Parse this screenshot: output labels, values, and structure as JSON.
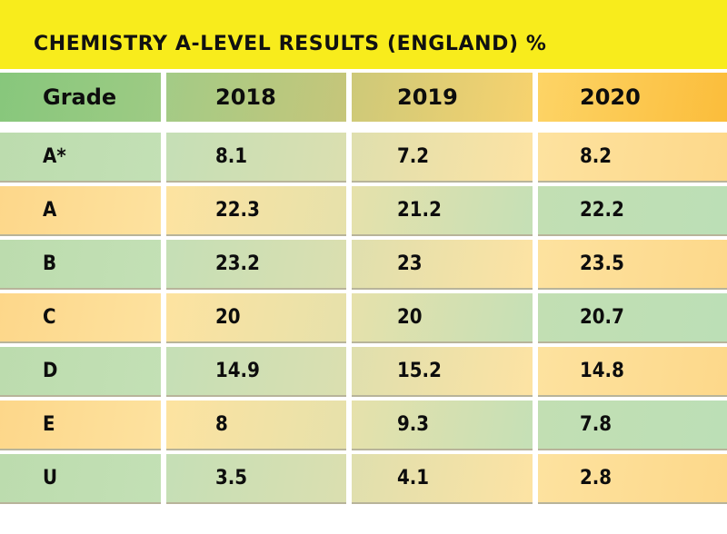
{
  "chart_data": {
    "type": "table",
    "title": "CHEMISTRY A-LEVEL RESULTS (ENGLAND) %",
    "columns": [
      "Grade",
      "2018",
      "2019",
      "2020"
    ],
    "rows": [
      {
        "grade": "A*",
        "values": [
          "8.1",
          "7.2",
          "8.2"
        ],
        "style": "green"
      },
      {
        "grade": "A",
        "values": [
          "22.3",
          "21.2",
          "22.2"
        ],
        "style": "orange"
      },
      {
        "grade": "B",
        "values": [
          "23.2",
          "23",
          "23.5"
        ],
        "style": "green"
      },
      {
        "grade": "C",
        "values": [
          "20",
          "20",
          "20.7"
        ],
        "style": "orange"
      },
      {
        "grade": "D",
        "values": [
          "14.9",
          "15.2",
          "14.8"
        ],
        "style": "green"
      },
      {
        "grade": "E",
        "values": [
          "8",
          "9.3",
          "7.8"
        ],
        "style": "orange"
      },
      {
        "grade": "U",
        "values": [
          "3.5",
          "4.1",
          "2.8"
        ],
        "style": "green"
      }
    ]
  },
  "colors": {
    "title_bar": "#f8ec1c",
    "green": "#bcdcae",
    "orange": "#fdd78a",
    "header_green": "#87c77c",
    "header_orange": "#fbbd3b"
  }
}
